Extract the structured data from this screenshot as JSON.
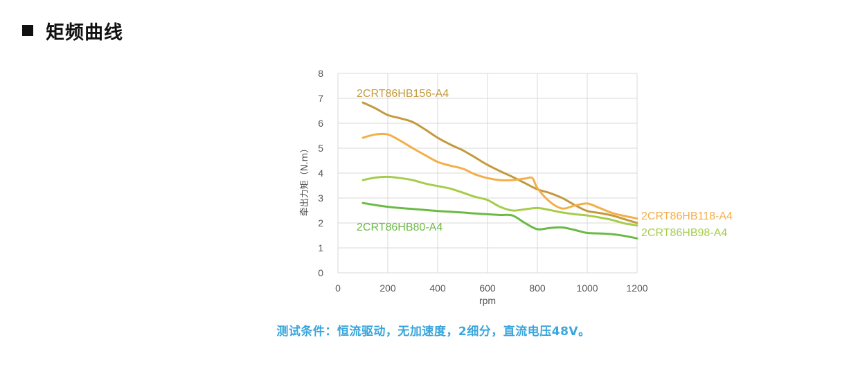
{
  "header": {
    "title": "矩频曲线"
  },
  "conditions_text": "测试条件：恒流驱动，无加速度，2细分，直流电压48V。",
  "chart_data": {
    "type": "line",
    "xlabel": "rpm",
    "ylabel": "牵出力矩（N.m）",
    "xlim": [
      0,
      1200
    ],
    "ylim": [
      0,
      8
    ],
    "xticks": [
      0,
      200,
      400,
      600,
      800,
      1000,
      1200
    ],
    "yticks": [
      0,
      1,
      2,
      3,
      4,
      5,
      6,
      7,
      8
    ],
    "grid": true,
    "series": [
      {
        "name": "2CRT86HB156-A4",
        "color": "#c39a3e",
        "x": [
          100,
          150,
          200,
          250,
          300,
          350,
          400,
          450,
          500,
          550,
          600,
          650,
          700,
          750,
          800,
          850,
          900,
          950,
          1000,
          1050,
          1100,
          1150,
          1200
        ],
        "y": [
          6.83,
          6.6,
          6.33,
          6.2,
          6.05,
          5.75,
          5.42,
          5.15,
          4.92,
          4.63,
          4.33,
          4.08,
          3.85,
          3.6,
          3.35,
          3.2,
          3.0,
          2.72,
          2.48,
          2.4,
          2.3,
          2.15,
          2.0
        ]
      },
      {
        "name": "2CRT86HB118-A4",
        "color": "#f4ae47",
        "x": [
          100,
          150,
          200,
          250,
          300,
          350,
          400,
          450,
          500,
          550,
          600,
          650,
          700,
          750,
          780,
          800,
          850,
          900,
          950,
          1000,
          1050,
          1100,
          1150,
          1200
        ],
        "y": [
          5.42,
          5.55,
          5.55,
          5.3,
          5.0,
          4.72,
          4.45,
          4.3,
          4.18,
          3.95,
          3.8,
          3.72,
          3.72,
          3.78,
          3.8,
          3.4,
          2.85,
          2.58,
          2.7,
          2.78,
          2.6,
          2.4,
          2.28,
          2.18
        ]
      },
      {
        "name": "2CRT86HB98-A4",
        "color": "#a6cc4a",
        "x": [
          100,
          150,
          200,
          250,
          300,
          350,
          400,
          450,
          500,
          550,
          600,
          650,
          700,
          750,
          800,
          850,
          900,
          950,
          1000,
          1050,
          1100,
          1150,
          1200
        ],
        "y": [
          3.72,
          3.82,
          3.85,
          3.8,
          3.72,
          3.58,
          3.48,
          3.38,
          3.22,
          3.05,
          2.92,
          2.65,
          2.5,
          2.55,
          2.6,
          2.52,
          2.42,
          2.35,
          2.3,
          2.22,
          2.12,
          1.98,
          1.9
        ]
      },
      {
        "name": "2CRT86HB80-A4",
        "color": "#6bba45",
        "x": [
          100,
          150,
          200,
          250,
          300,
          350,
          400,
          450,
          500,
          550,
          600,
          650,
          700,
          750,
          800,
          850,
          900,
          950,
          1000,
          1050,
          1100,
          1150,
          1200
        ],
        "y": [
          2.8,
          2.72,
          2.65,
          2.6,
          2.56,
          2.52,
          2.48,
          2.45,
          2.42,
          2.38,
          2.35,
          2.32,
          2.3,
          2.0,
          1.75,
          1.8,
          1.82,
          1.72,
          1.6,
          1.58,
          1.55,
          1.48,
          1.38
        ]
      }
    ]
  }
}
